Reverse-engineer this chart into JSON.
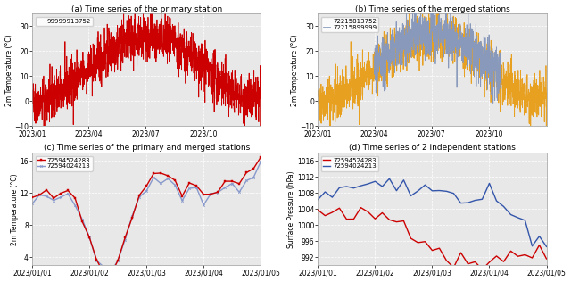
{
  "title_a": "(a) Time series of the primary station",
  "title_b": "(b) Time series of the merged stations",
  "title_c": "(c) Time series of the primary and merged stations",
  "title_d": "(d) Time series of 2 independent stations",
  "label_a": "99999913752",
  "label_b1": "72215813752",
  "label_b2": "72215899999",
  "label_c1": "72594524283",
  "label_c2": "72594024213",
  "label_d1": "72594524283",
  "label_d2": "72594024213",
  "color_a": "#cc0000",
  "color_b1": "#e8a020",
  "color_b2": "#8899bb",
  "color_c1": "#cc0000",
  "color_c2": "#8899cc",
  "color_d1": "#cc0000",
  "color_d2": "#3355aa",
  "ylabel_temp": "2m Temperature (°C)",
  "ylabel_pres": "Surface Pressure (hPa)",
  "ylim_ab": [
    -10,
    35
  ],
  "ylim_c": [
    3,
    17
  ],
  "ylim_d": [
    990,
    1018
  ],
  "yticks_ab": [
    -10,
    0,
    10,
    20,
    30
  ],
  "yticks_c": [
    4,
    8,
    12,
    16
  ],
  "yticks_d": [
    992,
    996,
    1000,
    1004,
    1008,
    1012,
    1016
  ],
  "linewidth_ab": 0.6,
  "linewidth_cd": 1.0
}
